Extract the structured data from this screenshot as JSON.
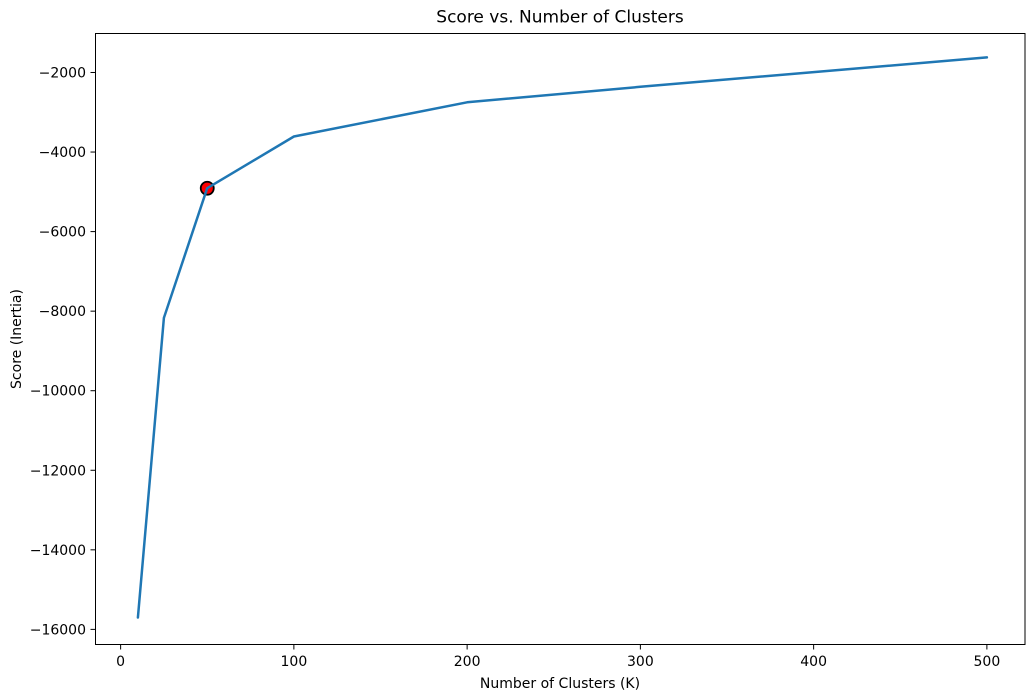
{
  "figure": {
    "background": "#ffffff"
  },
  "chart_data": {
    "type": "line",
    "title": "Score vs. Number of Clusters",
    "xlabel": "Number of Clusters (K)",
    "ylabel": "Score (Inertia)",
    "x": [
      10,
      25,
      50,
      100,
      200,
      300,
      400,
      500
    ],
    "y": [
      -15700,
      -8170,
      -4910,
      -3610,
      -2750,
      -2360,
      -1990,
      -1620
    ],
    "series_name": "Score (Inertia)",
    "line_color": "#1f77b4",
    "line_width": 2.5,
    "highlight_point": {
      "x": 50,
      "y": -4910,
      "fill": "#ff0000",
      "edge_color": "#000000",
      "radius": 6.5,
      "edge_width": 1.8
    },
    "xlim": [
      -14.5,
      522
    ],
    "ylim": [
      -16380,
      -1020
    ],
    "xticks": [
      0,
      100,
      200,
      300,
      400,
      500
    ],
    "yticks": [
      -16000,
      -14000,
      -12000,
      -10000,
      -8000,
      -6000,
      -4000,
      -2000
    ],
    "grid": false,
    "legend": null,
    "axis_color": "#000000",
    "text_color": "#000000"
  }
}
